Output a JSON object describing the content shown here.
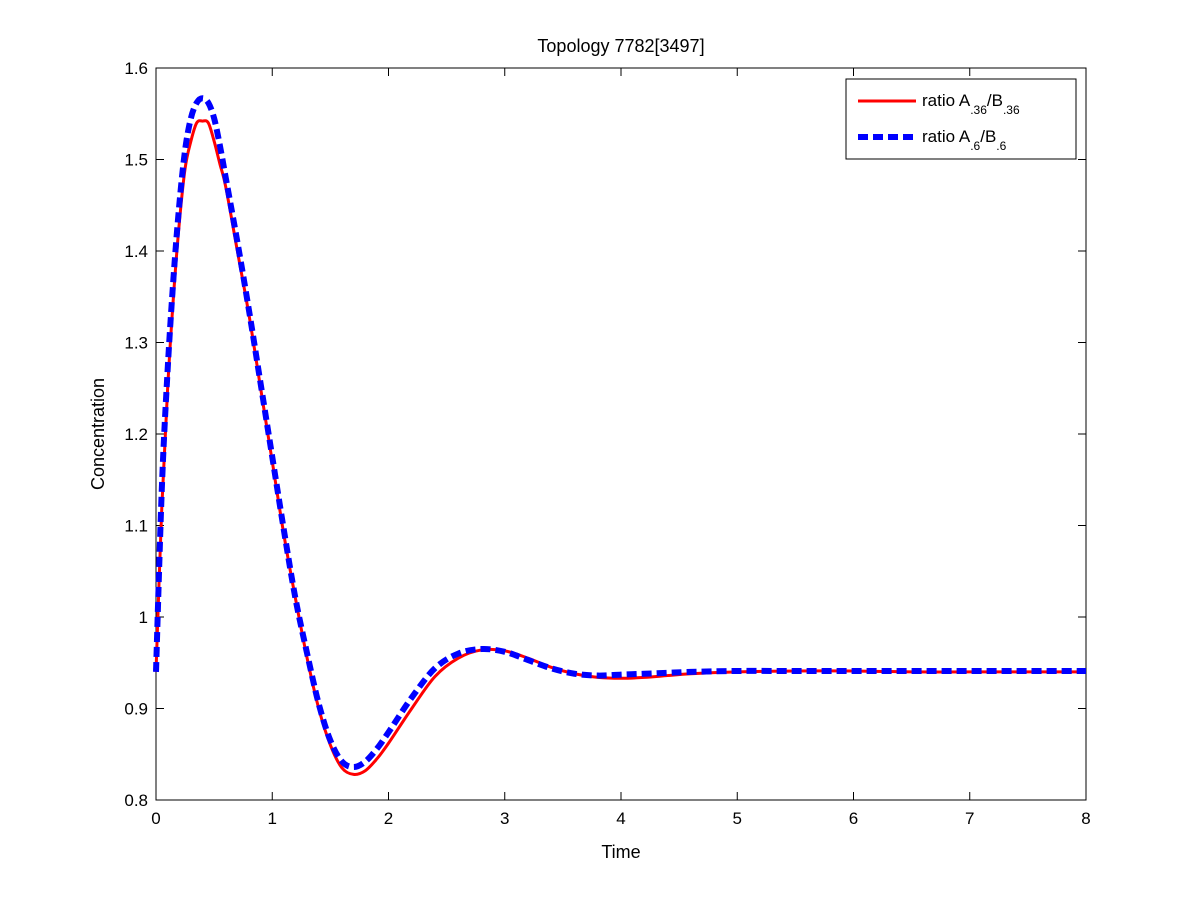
{
  "chart_data": {
    "type": "line",
    "title": "Topology 7782[3497]",
    "xlabel": "Time",
    "ylabel": "Concentration",
    "xlim": [
      0,
      8
    ],
    "ylim": [
      0.8,
      1.6
    ],
    "x_ticks": [
      0,
      1,
      2,
      3,
      4,
      5,
      6,
      7,
      8
    ],
    "y_ticks": [
      0.8,
      0.9,
      1.0,
      1.1,
      1.2,
      1.3,
      1.4,
      1.5,
      1.6
    ],
    "x_tick_labels": [
      "0",
      "1",
      "2",
      "3",
      "4",
      "5",
      "6",
      "7",
      "8"
    ],
    "y_tick_labels": [
      "0.8",
      "0.9",
      "1",
      "1.1",
      "1.2",
      "1.3",
      "1.4",
      "1.5",
      "1.6"
    ],
    "grid": false,
    "legend_position": "top-right",
    "series": [
      {
        "legend": {
          "prefix": "ratio A",
          "sub1": ".36",
          "mid": "/B",
          "sub2": ".36"
        },
        "color": "#ff0000",
        "style": "solid",
        "x": [
          0,
          0.05,
          0.1,
          0.15,
          0.2,
          0.25,
          0.3,
          0.35,
          0.4,
          0.45,
          0.5,
          0.55,
          0.6,
          0.7,
          0.8,
          0.9,
          1.0,
          1.1,
          1.2,
          1.3,
          1.4,
          1.5,
          1.6,
          1.7,
          1.8,
          1.9,
          2.0,
          2.2,
          2.4,
          2.6,
          2.8,
          3.0,
          3.2,
          3.4,
          3.6,
          3.8,
          4.0,
          4.2,
          4.4,
          4.6,
          5.0,
          5.5,
          6.0,
          6.5,
          7.0,
          7.5,
          8.0
        ],
        "y": [
          0.94,
          1.12,
          1.25,
          1.35,
          1.43,
          1.49,
          1.52,
          1.54,
          1.542,
          1.54,
          1.52,
          1.495,
          1.47,
          1.4,
          1.33,
          1.25,
          1.17,
          1.09,
          1.02,
          0.955,
          0.9,
          0.86,
          0.835,
          0.828,
          0.832,
          0.845,
          0.862,
          0.9,
          0.935,
          0.955,
          0.964,
          0.963,
          0.955,
          0.945,
          0.938,
          0.934,
          0.933,
          0.934,
          0.936,
          0.938,
          0.94,
          0.941,
          0.941,
          0.94,
          0.94,
          0.94,
          0.94
        ]
      },
      {
        "legend": {
          "prefix": "ratio A",
          "sub1": ".6",
          "mid": "/B",
          "sub2": ".6"
        },
        "color": "#0000ff",
        "style": "dashed",
        "x": [
          0,
          0.05,
          0.1,
          0.15,
          0.2,
          0.25,
          0.3,
          0.35,
          0.4,
          0.45,
          0.5,
          0.55,
          0.6,
          0.7,
          0.8,
          0.9,
          1.0,
          1.1,
          1.2,
          1.3,
          1.4,
          1.5,
          1.6,
          1.7,
          1.8,
          1.9,
          2.0,
          2.2,
          2.4,
          2.6,
          2.8,
          3.0,
          3.2,
          3.4,
          3.6,
          3.8,
          4.0,
          4.2,
          4.4,
          4.6,
          5.0,
          5.5,
          6.0,
          6.5,
          7.0,
          7.5,
          8.0
        ],
        "y": [
          0.94,
          1.14,
          1.27,
          1.37,
          1.45,
          1.51,
          1.545,
          1.562,
          1.567,
          1.562,
          1.545,
          1.515,
          1.48,
          1.41,
          1.335,
          1.255,
          1.175,
          1.095,
          1.02,
          0.96,
          0.905,
          0.865,
          0.842,
          0.836,
          0.842,
          0.856,
          0.874,
          0.912,
          0.944,
          0.96,
          0.965,
          0.962,
          0.953,
          0.944,
          0.938,
          0.936,
          0.937,
          0.938,
          0.939,
          0.94,
          0.941,
          0.941,
          0.941,
          0.941,
          0.941,
          0.941,
          0.941
        ]
      }
    ]
  }
}
